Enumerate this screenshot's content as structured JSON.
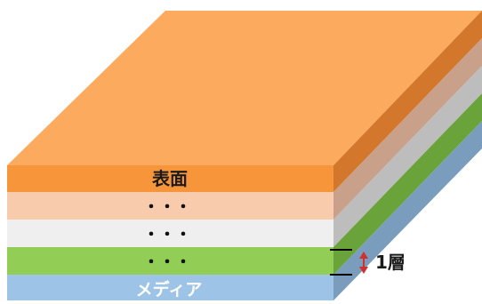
{
  "layers": [
    {
      "name": "surface",
      "label": "表面",
      "dots": "",
      "colors": {
        "front": "#F7953A",
        "side": "#D2772C"
      }
    },
    {
      "name": "layer-2",
      "label": "",
      "dots": "・・・",
      "colors": {
        "front": "#F8CBAD",
        "side": "#C9A08A"
      }
    },
    {
      "name": "layer-3",
      "label": "",
      "dots": "・・・",
      "colors": {
        "front": "#EFEFEF",
        "side": "#BDBDBD"
      }
    },
    {
      "name": "layer-4",
      "label": "",
      "dots": "・・・",
      "colors": {
        "front": "#92CE55",
        "side": "#6AA33A"
      }
    },
    {
      "name": "media",
      "label": "メディア",
      "dots": "",
      "colors": {
        "front": "#9DC3E6",
        "side": "#7A9DBD"
      }
    }
  ],
  "top_face_color": "#FBAA5E",
  "annotation": {
    "label": "1層",
    "arrow_color": "#D0312D",
    "bracket_color": "#000000"
  }
}
